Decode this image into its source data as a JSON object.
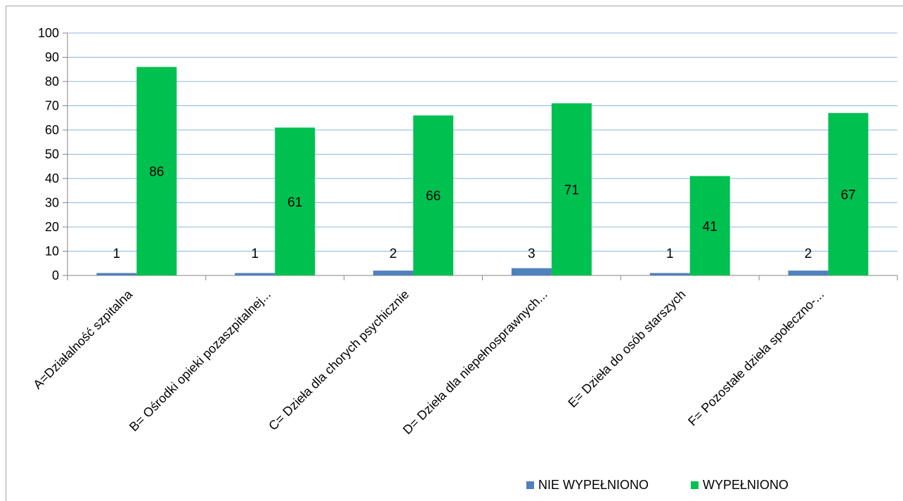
{
  "chart_data": {
    "type": "bar",
    "categories": [
      "A=Działalność szpitalna",
      "B= Ośrodki opieki pozaszpitalnej...",
      "C= Dzieła dla chorych psychicznie",
      "D= Dzieła dla niepełnosprawnych...",
      "E= Dzieła do osób starszych",
      "F= Pozostałe dzieła społeczno-..."
    ],
    "series": [
      {
        "name": "NIE WYPEŁNIONO",
        "color": "#4f81bd",
        "values": [
          1,
          1,
          2,
          3,
          1,
          2
        ]
      },
      {
        "name": "WYPEŁNIONO",
        "color": "#00c050",
        "values": [
          86,
          61,
          66,
          71,
          41,
          67
        ]
      }
    ],
    "yticks": [
      "0",
      "10",
      "20",
      "30",
      "40",
      "50",
      "60",
      "70",
      "80",
      "90",
      "100"
    ],
    "ylim": [
      0,
      100
    ],
    "grid": true,
    "legend_position": "bottom-right"
  }
}
